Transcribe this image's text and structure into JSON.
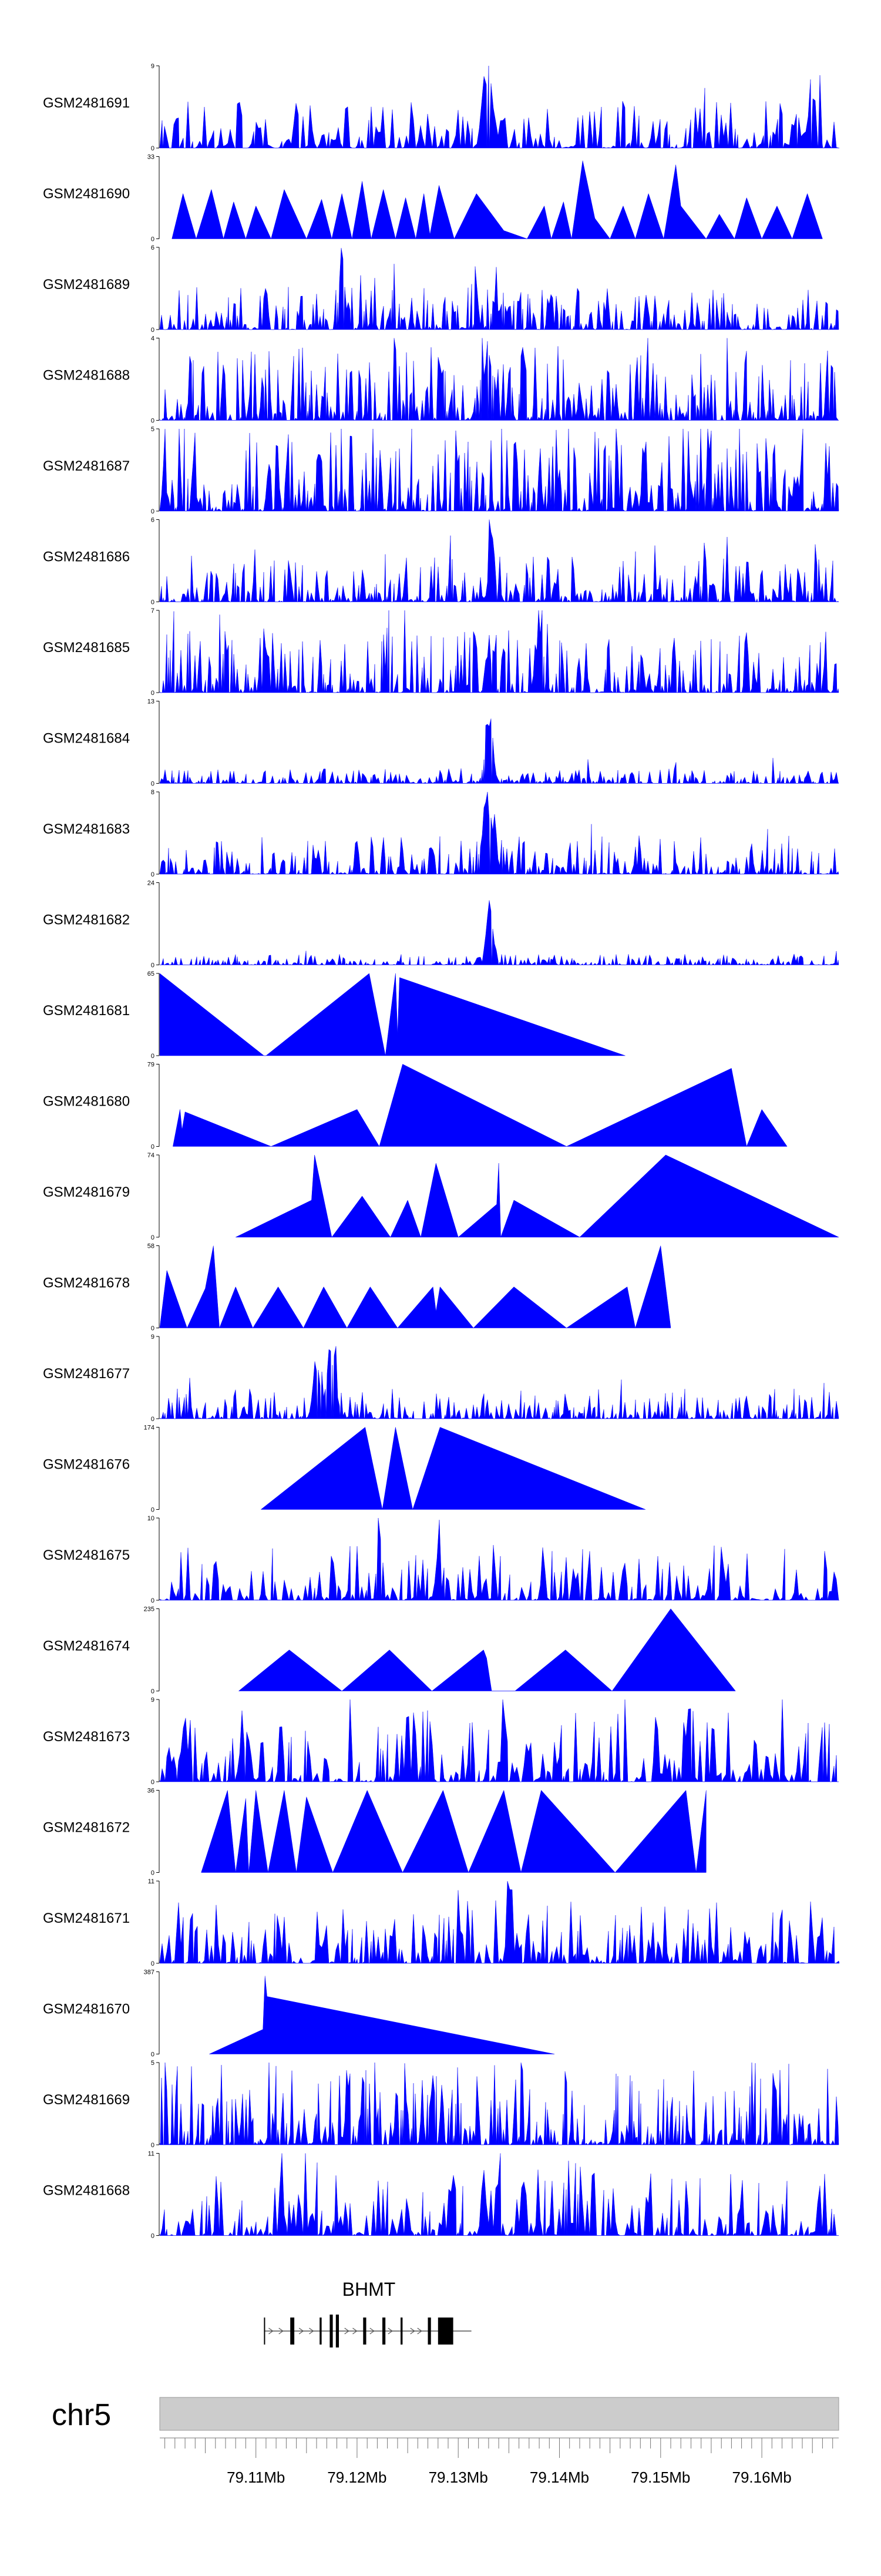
{
  "chart_data": {
    "type": "area",
    "title": "",
    "chromosome": "chr5",
    "gene": {
      "name": "BHMT",
      "strand": "+"
    },
    "genome_axis": {
      "unit": "Mb",
      "range": [
        79.1005,
        79.1676
      ],
      "ticks": [
        {
          "value": 79.11,
          "label": "79.11Mb"
        },
        {
          "value": 79.12,
          "label": "79.12Mb"
        },
        {
          "value": 79.13,
          "label": "79.13Mb"
        },
        {
          "value": 79.14,
          "label": "79.14Mb"
        },
        {
          "value": 79.15,
          "label": "79.15Mb"
        },
        {
          "value": 79.16,
          "label": "79.16Mb"
        }
      ]
    },
    "color": "#0000ff",
    "tracks": [
      {
        "sample": "GSM2481691",
        "ymax": 9,
        "ymax_label": "9",
        "kind": "noise",
        "seed": 11,
        "base": 0.22,
        "step": 4,
        "peaks": [
          {
            "pos": 79.133,
            "width": 0.0006,
            "height": 1.0
          },
          {
            "pos": 79.165,
            "width": 0.0003,
            "height": 0.75
          }
        ]
      },
      {
        "sample": "GSM2481690",
        "ymax": 33,
        "ymax_label": "33",
        "kind": "tent",
        "points": [
          [
            79.1017,
            0
          ],
          [
            79.1028,
            0.55
          ],
          [
            79.1041,
            0
          ],
          [
            79.1056,
            0.6
          ],
          [
            79.1068,
            0
          ],
          [
            79.1078,
            0.45
          ],
          [
            79.109,
            0
          ],
          [
            79.11,
            0.4
          ],
          [
            79.1115,
            0
          ],
          [
            79.1128,
            0.6
          ],
          [
            79.115,
            0
          ],
          [
            79.1165,
            0.48
          ],
          [
            79.1175,
            0
          ],
          [
            79.1185,
            0.55
          ],
          [
            79.1195,
            0
          ],
          [
            79.1205,
            0.7
          ],
          [
            79.1214,
            0
          ],
          [
            79.1226,
            0.6
          ],
          [
            79.1238,
            0
          ],
          [
            79.1248,
            0.5
          ],
          [
            79.1258,
            0
          ],
          [
            79.1266,
            0.55
          ],
          [
            79.1272,
            0.05
          ],
          [
            79.1281,
            0.65
          ],
          [
            79.1296,
            0
          ],
          [
            79.1318,
            0.55
          ],
          [
            79.1345,
            0.1
          ],
          [
            79.1368,
            0
          ],
          [
            79.1385,
            0.4
          ],
          [
            79.1392,
            0
          ],
          [
            79.1404,
            0.45
          ],
          [
            79.1412,
            0
          ],
          [
            79.1423,
            0.95
          ],
          [
            79.1435,
            0.25
          ],
          [
            79.145,
            0
          ],
          [
            79.1463,
            0.4
          ],
          [
            79.1475,
            0
          ],
          [
            79.1488,
            0.55
          ],
          [
            79.1503,
            0
          ],
          [
            79.1515,
            0.9
          ],
          [
            79.152,
            0.4
          ],
          [
            79.1545,
            0
          ],
          [
            79.1558,
            0.3
          ],
          [
            79.1573,
            0
          ],
          [
            79.1585,
            0.5
          ],
          [
            79.16,
            0
          ],
          [
            79.1615,
            0.4
          ],
          [
            79.163,
            0
          ],
          [
            79.1645,
            0.55
          ],
          [
            79.166,
            0
          ]
        ]
      },
      {
        "sample": "GSM2481689",
        "ymax": 6,
        "ymax_label": "6",
        "kind": "noise",
        "seed": 23,
        "base": 0.2,
        "step": 3,
        "peaks": [
          {
            "pos": 79.1185,
            "width": 0.0004,
            "height": 1.0
          }
        ]
      },
      {
        "sample": "GSM2481688",
        "ymax": 4,
        "ymax_label": "4",
        "kind": "noise",
        "seed": 37,
        "base": 0.35,
        "step": 3,
        "peaks": [
          {
            "pos": 79.133,
            "width": 0.0008,
            "height": 0.9
          }
        ]
      },
      {
        "sample": "GSM2481687",
        "ymax": 5,
        "ymax_label": "5",
        "kind": "noise",
        "seed": 41,
        "base": 0.4,
        "step": 3,
        "peaks": [
          {
            "pos": 79.1162,
            "width": 0.0003,
            "height": 1.0
          },
          {
            "pos": 79.1548,
            "width": 0.0003,
            "height": 0.95
          }
        ]
      },
      {
        "sample": "GSM2481686",
        "ymax": 6,
        "ymax_label": "6",
        "kind": "noise",
        "seed": 53,
        "base": 0.22,
        "step": 3,
        "peaks": [
          {
            "pos": 79.1333,
            "width": 0.0004,
            "height": 0.95
          }
        ]
      },
      {
        "sample": "GSM2481685",
        "ymax": 7,
        "ymax_label": "7",
        "kind": "noise",
        "seed": 67,
        "base": 0.3,
        "step": 3,
        "peaks": [
          {
            "pos": 79.138,
            "width": 0.0005,
            "height": 0.95
          }
        ]
      },
      {
        "sample": "GSM2481684",
        "ymax": 13,
        "ymax_label": "13",
        "kind": "noise",
        "seed": 71,
        "base": 0.07,
        "step": 3,
        "peaks": [
          {
            "pos": 79.133,
            "width": 0.0005,
            "height": 1.0
          }
        ]
      },
      {
        "sample": "GSM2481683",
        "ymax": 8,
        "ymax_label": "8",
        "kind": "noise",
        "seed": 83,
        "base": 0.18,
        "step": 3,
        "peaks": [
          {
            "pos": 79.133,
            "width": 0.0008,
            "height": 0.95
          }
        ]
      },
      {
        "sample": "GSM2481682",
        "ymax": 24,
        "ymax_label": "24",
        "kind": "noise",
        "seed": 97,
        "base": 0.05,
        "step": 3,
        "peaks": [
          {
            "pos": 79.1331,
            "width": 0.0004,
            "height": 1.0
          }
        ]
      },
      {
        "sample": "GSM2481681",
        "ymax": 65,
        "ymax_label": "65",
        "kind": "tent",
        "points": [
          [
            79.1005,
            1.0
          ],
          [
            79.1108,
            0
          ],
          [
            79.111,
            0
          ],
          [
            79.1212,
            1.0
          ],
          [
            79.1228,
            0
          ],
          [
            79.1238,
            1.0
          ],
          [
            79.124,
            0.25
          ],
          [
            79.1242,
            0.95
          ],
          [
            79.1465,
            0
          ]
        ]
      },
      {
        "sample": "GSM2481680",
        "ymax": 79,
        "ymax_label": "79",
        "kind": "tent",
        "points": [
          [
            79.1018,
            0
          ],
          [
            79.1025,
            0.45
          ],
          [
            79.1027,
            0.2
          ],
          [
            79.103,
            0.42
          ],
          [
            79.1115,
            0
          ],
          [
            79.12,
            0.45
          ],
          [
            79.1222,
            0
          ],
          [
            79.1245,
            1.0
          ],
          [
            79.1407,
            0
          ],
          [
            79.157,
            0.95
          ],
          [
            79.1585,
            0
          ],
          [
            79.16,
            0.45
          ],
          [
            79.1625,
            0
          ]
        ]
      },
      {
        "sample": "GSM2481679",
        "ymax": 74,
        "ymax_label": "74",
        "kind": "tent",
        "points": [
          [
            79.108,
            0
          ],
          [
            79.1155,
            0.45
          ],
          [
            79.1158,
            1.0
          ],
          [
            79.1175,
            0
          ],
          [
            79.1205,
            0.5
          ],
          [
            79.1233,
            0
          ],
          [
            79.125,
            0.45
          ],
          [
            79.1263,
            0
          ],
          [
            79.1278,
            0.9
          ],
          [
            79.13,
            0
          ],
          [
            79.1338,
            0.4
          ],
          [
            79.134,
            0.9
          ],
          [
            79.1342,
            0
          ],
          [
            79.1355,
            0.45
          ],
          [
            79.142,
            0
          ],
          [
            79.1505,
            1.0
          ],
          [
            79.1676,
            0
          ]
        ]
      },
      {
        "sample": "GSM2481678",
        "ymax": 58,
        "ymax_label": "58",
        "kind": "tent",
        "points": [
          [
            79.1005,
            0
          ],
          [
            79.1012,
            0.7
          ],
          [
            79.1032,
            0
          ],
          [
            79.105,
            0.48
          ],
          [
            79.1058,
            1.0
          ],
          [
            79.1064,
            0
          ],
          [
            79.108,
            0.5
          ],
          [
            79.1097,
            0
          ],
          [
            79.1122,
            0.5
          ],
          [
            79.1147,
            0
          ],
          [
            79.1167,
            0.5
          ],
          [
            79.119,
            0
          ],
          [
            79.1213,
            0.5
          ],
          [
            79.124,
            0
          ],
          [
            79.1275,
            0.5
          ],
          [
            79.1278,
            0.2
          ],
          [
            79.1282,
            0.5
          ],
          [
            79.1315,
            0
          ],
          [
            79.1355,
            0.5
          ],
          [
            79.1407,
            0
          ],
          [
            79.1467,
            0.5
          ],
          [
            79.1475,
            0
          ],
          [
            79.15,
            1.0
          ],
          [
            79.151,
            0
          ]
        ]
      },
      {
        "sample": "GSM2481677",
        "ymax": 9,
        "ymax_label": "9",
        "kind": "noise",
        "seed": 101,
        "base": 0.14,
        "step": 3,
        "peaks": [
          {
            "pos": 79.1175,
            "width": 0.0006,
            "height": 1.0
          },
          {
            "pos": 79.116,
            "width": 0.0005,
            "height": 0.75
          }
        ]
      },
      {
        "sample": "GSM2481676",
        "ymax": 174,
        "ymax_label": "174",
        "kind": "tent",
        "points": [
          [
            79.1105,
            0
          ],
          [
            79.1208,
            1.0
          ],
          [
            79.1225,
            0
          ],
          [
            79.1238,
            1.0
          ],
          [
            79.1255,
            0
          ],
          [
            79.1282,
            1.0
          ],
          [
            79.1485,
            0
          ]
        ]
      },
      {
        "sample": "GSM2481675",
        "ymax": 10,
        "ymax_label": "10",
        "kind": "noise",
        "seed": 113,
        "base": 0.26,
        "step": 4,
        "peaks": [
          {
            "pos": 79.1222,
            "width": 0.0003,
            "height": 0.9
          },
          {
            "pos": 79.128,
            "width": 0.0003,
            "height": 0.8
          }
        ]
      },
      {
        "sample": "GSM2481674",
        "ymax": 235,
        "ymax_label": "235",
        "kind": "tent",
        "points": [
          [
            79.1083,
            0
          ],
          [
            79.1133,
            0.5
          ],
          [
            79.1185,
            0
          ],
          [
            79.1232,
            0.5
          ],
          [
            79.1274,
            0
          ],
          [
            79.1325,
            0.5
          ],
          [
            79.1328,
            0.4
          ],
          [
            79.1333,
            0
          ],
          [
            79.1356,
            0
          ],
          [
            79.1406,
            0.5
          ],
          [
            79.1452,
            0
          ],
          [
            79.151,
            1.0
          ],
          [
            79.1574,
            0
          ]
        ]
      },
      {
        "sample": "GSM2481673",
        "ymax": 9,
        "ymax_label": "9",
        "kind": "noise",
        "seed": 127,
        "base": 0.35,
        "step": 4,
        "peaks": [
          {
            "pos": 79.103,
            "width": 0.0003,
            "height": 1.0
          },
          {
            "pos": 79.1345,
            "width": 0.0003,
            "height": 0.95
          }
        ]
      },
      {
        "sample": "GSM2481672",
        "ymax": 36,
        "ymax_label": "36",
        "kind": "tent",
        "points": [
          [
            79.1046,
            0
          ],
          [
            79.1072,
            1.0
          ],
          [
            79.108,
            0
          ],
          [
            79.109,
            0.9
          ],
          [
            79.1093,
            0
          ],
          [
            79.11,
            1.0
          ],
          [
            79.1112,
            0
          ],
          [
            79.1128,
            1.0
          ],
          [
            79.114,
            0
          ],
          [
            79.115,
            0.92
          ],
          [
            79.1176,
            0
          ],
          [
            79.121,
            1.0
          ],
          [
            79.1245,
            0
          ],
          [
            79.1285,
            1.0
          ],
          [
            79.131,
            0
          ],
          [
            79.1345,
            1.0
          ],
          [
            79.1362,
            0
          ],
          [
            79.1382,
            1.0
          ],
          [
            79.1455,
            0
          ],
          [
            79.1525,
            1.0
          ],
          [
            79.1535,
            0
          ],
          [
            79.1545,
            1.0
          ]
        ]
      },
      {
        "sample": "GSM2481671",
        "ymax": 11,
        "ymax_label": "11",
        "kind": "noise",
        "seed": 131,
        "base": 0.3,
        "step": 4,
        "peaks": [
          {
            "pos": 79.135,
            "width": 0.0003,
            "height": 1.0
          }
        ]
      },
      {
        "sample": "GSM2481670",
        "ymax": 387,
        "ymax_label": "387",
        "kind": "tent",
        "points": [
          [
            79.1054,
            0
          ],
          [
            79.1107,
            0.3
          ],
          [
            79.1109,
            0.95
          ],
          [
            79.1111,
            0.7
          ],
          [
            79.1395,
            0
          ]
        ]
      },
      {
        "sample": "GSM2481669",
        "ymax": 5,
        "ymax_label": "5",
        "kind": "noise",
        "seed": 149,
        "base": 0.4,
        "step": 3,
        "peaks": [
          {
            "pos": 79.1275,
            "width": 0.0003,
            "height": 0.9
          }
        ]
      },
      {
        "sample": "GSM2481668",
        "ymax": 11,
        "ymax_label": "11",
        "kind": "noise",
        "seed": 163,
        "base": 0.3,
        "step": 4,
        "peaks": [
          {
            "pos": 79.1325,
            "width": 0.0003,
            "height": 1.0
          },
          {
            "pos": 79.134,
            "width": 0.0003,
            "height": 0.85
          }
        ]
      }
    ]
  }
}
